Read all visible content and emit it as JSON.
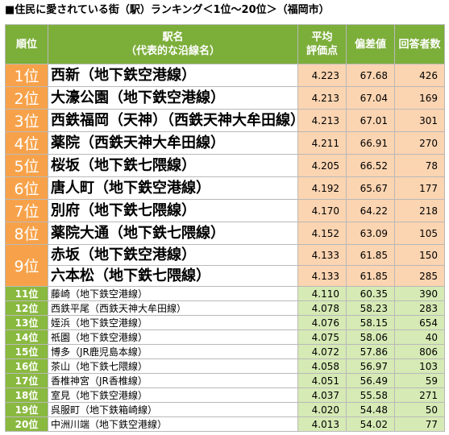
{
  "title": "■住民に愛されている街（駅）ランキング＜1位～20位＞（福岡市）",
  "headers": {
    "rank": "順位",
    "station_line1": "駅名",
    "station_line2": "（代表的な沿線名）",
    "avg_line1": "平均",
    "avg_line2": "評価点",
    "deviation": "偏差値",
    "respondents": "回答者数"
  },
  "top_rows": [
    {
      "rank": "1位",
      "station": "西新（地下鉄空港線）",
      "avg": "4.223",
      "dev": "67.68",
      "n": "426"
    },
    {
      "rank": "2位",
      "station": "大濠公園（地下鉄空港線）",
      "avg": "4.213",
      "dev": "67.04",
      "n": "169"
    },
    {
      "rank": "3位",
      "station": "西鉄福岡（天神）（西鉄天神大牟田線）",
      "avg": "4.213",
      "dev": "67.01",
      "n": "301"
    },
    {
      "rank": "4位",
      "station": "薬院（西鉄天神大牟田線）",
      "avg": "4.211",
      "dev": "66.91",
      "n": "270"
    },
    {
      "rank": "5位",
      "station": "桜坂（地下鉄七隈線）",
      "avg": "4.205",
      "dev": "66.52",
      "n": "78"
    },
    {
      "rank": "6位",
      "station": "唐人町（地下鉄空港線）",
      "avg": "4.192",
      "dev": "65.67",
      "n": "177"
    },
    {
      "rank": "7位",
      "station": "別府（地下鉄七隈線）",
      "avg": "4.170",
      "dev": "64.22",
      "n": "218"
    },
    {
      "rank": "8位",
      "station": "薬院大通（地下鉄七隈線）",
      "avg": "4.152",
      "dev": "63.09",
      "n": "105"
    },
    {
      "rank": "9位",
      "station": "赤坂（地下鉄空港線）",
      "avg": "4.133",
      "dev": "61.85",
      "n": "150"
    },
    {
      "rank": "",
      "station": "六本松（地下鉄七隈線）",
      "avg": "4.133",
      "dev": "61.85",
      "n": "285"
    }
  ],
  "low_rows": [
    {
      "rank": "11位",
      "station": "藤崎（地下鉄空港線）",
      "avg": "4.110",
      "dev": "60.35",
      "n": "390"
    },
    {
      "rank": "12位",
      "station": "西鉄平尾（西鉄天神大牟田線）",
      "avg": "4.078",
      "dev": "58.23",
      "n": "283"
    },
    {
      "rank": "13位",
      "station": "姪浜（地下鉄空港線）",
      "avg": "4.076",
      "dev": "58.15",
      "n": "654"
    },
    {
      "rank": "14位",
      "station": "祇園（地下鉄空港線）",
      "avg": "4.075",
      "dev": "58.06",
      "n": "40"
    },
    {
      "rank": "15位",
      "station": "博多（JR鹿児島本線）",
      "avg": "4.072",
      "dev": "57.86",
      "n": "806"
    },
    {
      "rank": "16位",
      "station": "茶山（地下鉄七隈線）",
      "avg": "4.058",
      "dev": "56.97",
      "n": "103"
    },
    {
      "rank": "17位",
      "station": "香椎神宮（JR香椎線）",
      "avg": "4.051",
      "dev": "56.49",
      "n": "59"
    },
    {
      "rank": "18位",
      "station": "室見（地下鉄空港線）",
      "avg": "4.037",
      "dev": "55.58",
      "n": "271"
    },
    {
      "rank": "19位",
      "station": "呉服町（地下鉄箱崎線）",
      "avg": "4.020",
      "dev": "54.48",
      "n": "50"
    },
    {
      "rank": "20位",
      "station": "中洲川端（地下鉄空港線）",
      "avg": "4.013",
      "dev": "54.02",
      "n": "77"
    }
  ]
}
